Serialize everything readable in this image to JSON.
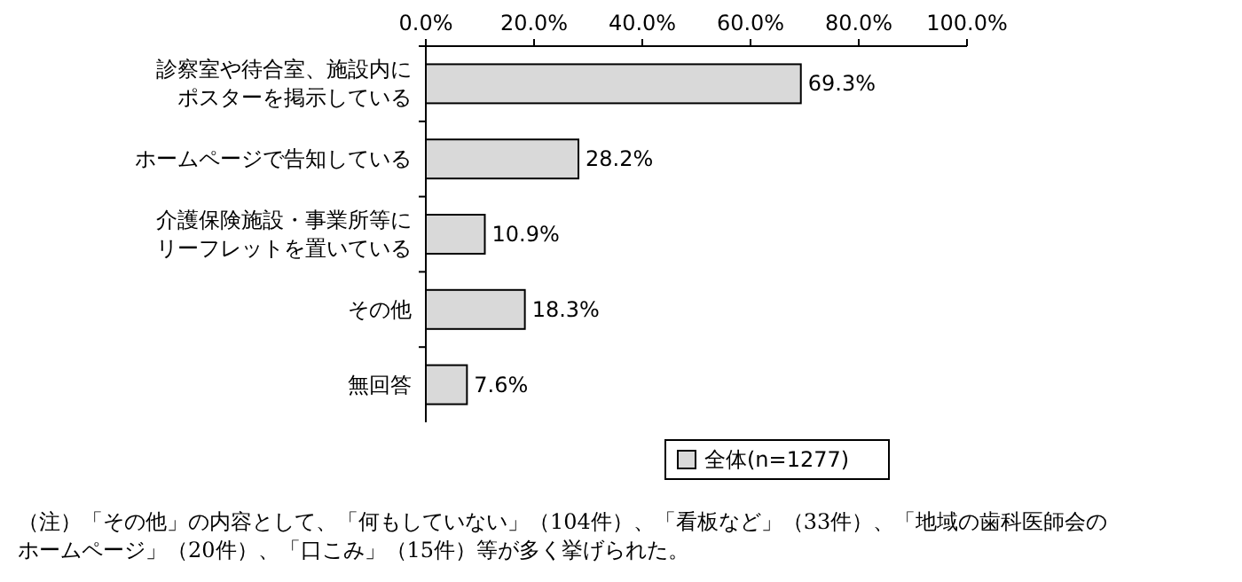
{
  "chart_data": {
    "type": "bar",
    "orientation": "horizontal",
    "categories": [
      "診察室や待合室、施設内にポスターを掲示している",
      "ホームページで告知している",
      "介護保険施設・事業所等にリーフレットを置いている",
      "その他",
      "無回答"
    ],
    "series": [
      {
        "name": "全体(n=1277)",
        "color": "#d9d9d9",
        "values": [
          69.3,
          28.2,
          10.9,
          18.3,
          7.6
        ],
        "value_labels": [
          "69.3%",
          "28.2%",
          "10.9%",
          "18.3%",
          "7.6%"
        ]
      }
    ],
    "xlim": [
      0,
      100
    ],
    "xticks": [
      {
        "value": 0,
        "label": "0.0%"
      },
      {
        "value": 20,
        "label": "20.0%"
      },
      {
        "value": 40,
        "label": "40.0%"
      },
      {
        "value": 60,
        "label": "60.0%"
      },
      {
        "value": 80,
        "label": "80.0%"
      },
      {
        "value": 100,
        "label": "100.0%"
      }
    ],
    "legend": "bottom",
    "grid": false,
    "annotations": [
      "（注）「その他」の内容として、「何もしていない」（104件）、「看板など」（33件）、「地域の歯科医師会のホームページ」（20件）、「口こみ」（15件）等が多く挙げられた。"
    ]
  }
}
